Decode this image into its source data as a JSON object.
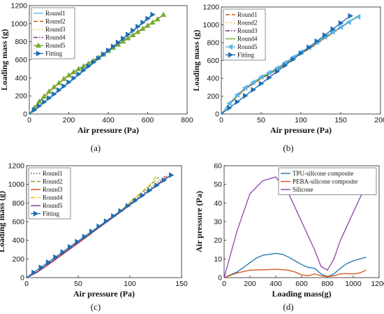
{
  "captions": [
    "(a)",
    "(b)",
    "(c)",
    "(d)"
  ],
  "colors": {
    "round1": "#5fb6e6",
    "round2": "#d95319",
    "round3": "#edb120",
    "round4": "#7e2f8e",
    "round5": "#77ac30",
    "fitting": "#1f6fb4",
    "tpu": "#1f77b4",
    "peba": "#d95319",
    "silicone": "#8e44ad"
  },
  "chart_data": [
    {
      "id": "a",
      "type": "line",
      "xlabel": "Air pressure (Pa)",
      "ylabel": "Loading mass (g)",
      "xlim": [
        0,
        800
      ],
      "ylim": [
        0,
        1200
      ],
      "xticks": [
        "0",
        "200",
        "400",
        "600",
        "800"
      ],
      "yticks": [
        "0",
        "200",
        "400",
        "600",
        "800",
        "1000",
        "1200"
      ],
      "legend_position": "top-left",
      "series": [
        {
          "name": "Round1",
          "color_key": "round1",
          "dash": "solid",
          "marker": "none",
          "x": [
            0,
            50,
            100,
            150,
            200,
            250,
            300,
            350,
            400,
            450,
            500,
            550,
            600,
            650,
            680
          ],
          "y": [
            0,
            130,
            250,
            340,
            430,
            500,
            560,
            625,
            700,
            770,
            840,
            910,
            980,
            1050,
            1100
          ]
        },
        {
          "name": "Round2",
          "color_key": "round2",
          "dash": "dash",
          "marker": "none",
          "x": [
            0,
            50,
            100,
            150,
            200,
            250,
            300,
            350,
            400,
            450,
            500,
            550,
            600,
            650,
            680
          ],
          "y": [
            0,
            125,
            245,
            340,
            425,
            495,
            555,
            620,
            695,
            765,
            835,
            905,
            975,
            1045,
            1100
          ]
        },
        {
          "name": "Round3",
          "color_key": "round3",
          "dash": "dot",
          "marker": "none",
          "x": [
            0,
            50,
            100,
            150,
            200,
            250,
            300,
            350,
            400,
            450,
            500,
            550,
            600,
            650,
            680
          ],
          "y": [
            0,
            128,
            248,
            342,
            428,
            498,
            558,
            622,
            698,
            768,
            838,
            908,
            978,
            1048,
            1100
          ]
        },
        {
          "name": "Round4",
          "color_key": "round4",
          "dash": "dashdot",
          "marker": "none",
          "x": [
            0,
            50,
            100,
            150,
            200,
            250,
            300,
            350,
            400,
            450,
            500,
            550,
            600,
            650,
            680
          ],
          "y": [
            0,
            132,
            252,
            345,
            432,
            502,
            562,
            628,
            702,
            772,
            842,
            912,
            982,
            1052,
            1100
          ]
        },
        {
          "name": "Round5",
          "color_key": "round5",
          "dash": "solid",
          "marker": "triangle-up",
          "x": [
            0,
            25,
            50,
            75,
            100,
            125,
            150,
            175,
            200,
            225,
            250,
            275,
            300,
            325,
            350,
            375,
            400,
            425,
            450,
            475,
            500,
            525,
            550,
            575,
            600,
            625,
            650,
            680
          ],
          "y": [
            0,
            70,
            140,
            195,
            250,
            300,
            345,
            390,
            430,
            465,
            500,
            530,
            560,
            590,
            625,
            660,
            700,
            735,
            770,
            805,
            840,
            875,
            910,
            945,
            980,
            1015,
            1050,
            1100
          ]
        },
        {
          "name": "Fitting",
          "color_key": "fitting",
          "dash": "solid",
          "marker": "triangle-right",
          "x": [
            0,
            25,
            50,
            75,
            100,
            125,
            150,
            175,
            200,
            225,
            250,
            275,
            300,
            325,
            350,
            375,
            400,
            425,
            450,
            475,
            500,
            525,
            550,
            575,
            600,
            625
          ],
          "y": [
            0,
            44,
            88,
            132,
            176,
            220,
            264,
            308,
            352,
            396,
            440,
            484,
            528,
            572,
            616,
            660,
            704,
            748,
            792,
            836,
            880,
            924,
            968,
            1012,
            1056,
            1100
          ]
        }
      ]
    },
    {
      "id": "b",
      "type": "line",
      "xlabel": "Air pressure (Pa)",
      "ylabel": "Loading mass (g)",
      "xlim": [
        0,
        200
      ],
      "ylim": [
        0,
        1200
      ],
      "xticks": [
        "0",
        "50",
        "100",
        "150",
        "200"
      ],
      "yticks": [
        "0",
        "200",
        "400",
        "600",
        "800",
        "1000",
        "1200"
      ],
      "legend_position": "top-left",
      "series": [
        {
          "name": "Round1",
          "color_key": "round2",
          "dash": "dash",
          "marker": "none",
          "x": [
            0,
            10,
            20,
            30,
            40,
            50,
            60,
            70,
            80,
            90,
            100,
            110,
            120,
            130,
            140,
            150,
            160,
            172
          ],
          "y": [
            0,
            110,
            200,
            280,
            340,
            400,
            450,
            500,
            560,
            620,
            680,
            730,
            790,
            850,
            910,
            970,
            1030,
            1100
          ]
        },
        {
          "name": "Round2",
          "color_key": "round3",
          "dash": "dot",
          "marker": "none",
          "x": [
            0,
            10,
            20,
            30,
            40,
            50,
            60,
            70,
            80,
            90,
            100,
            110,
            120,
            130,
            140,
            150,
            160,
            172
          ],
          "y": [
            0,
            105,
            195,
            275,
            335,
            395,
            445,
            495,
            555,
            615,
            675,
            725,
            785,
            845,
            905,
            965,
            1025,
            1100
          ]
        },
        {
          "name": "Round3",
          "color_key": "round4",
          "dash": "dashdot",
          "marker": "none",
          "x": [
            0,
            10,
            20,
            30,
            40,
            50,
            60,
            70,
            80,
            90,
            100,
            110,
            120,
            130,
            140,
            150,
            160,
            172
          ],
          "y": [
            0,
            108,
            198,
            278,
            338,
            398,
            448,
            498,
            558,
            618,
            678,
            728,
            788,
            848,
            908,
            968,
            1028,
            1100
          ]
        },
        {
          "name": "Round4",
          "color_key": "round5",
          "dash": "solid",
          "marker": "none",
          "x": [
            0,
            10,
            20,
            30,
            40,
            50,
            60,
            70,
            80,
            90,
            100,
            110,
            120,
            130,
            140,
            150,
            160,
            172
          ],
          "y": [
            0,
            112,
            205,
            285,
            345,
            405,
            455,
            505,
            565,
            625,
            685,
            735,
            795,
            855,
            915,
            975,
            1035,
            1100
          ]
        },
        {
          "name": "Round5",
          "color_key": "round1",
          "dash": "solid",
          "marker": "triangle-left",
          "x": [
            0,
            10,
            20,
            30,
            40,
            50,
            60,
            70,
            80,
            90,
            100,
            110,
            120,
            130,
            140,
            150,
            160,
            172
          ],
          "y": [
            0,
            120,
            215,
            295,
            355,
            415,
            465,
            515,
            575,
            635,
            695,
            745,
            805,
            865,
            920,
            975,
            1030,
            1090
          ]
        },
        {
          "name": "Fitting",
          "color_key": "fitting",
          "dash": "solid",
          "marker": "triangle-right",
          "x": [
            0,
            10,
            20,
            30,
            40,
            50,
            60,
            70,
            80,
            90,
            100,
            110,
            120,
            130,
            140,
            150,
            162
          ],
          "y": [
            0,
            68,
            136,
            204,
            272,
            340,
            408,
            476,
            544,
            612,
            680,
            748,
            816,
            884,
            952,
            1020,
            1100
          ]
        }
      ]
    },
    {
      "id": "c",
      "type": "line",
      "xlabel": "Air pressure (Pa)",
      "ylabel": "Loading mass (g)",
      "xlim": [
        0,
        150
      ],
      "ylim": [
        0,
        1200
      ],
      "xticks": [
        "0",
        "50",
        "100",
        "150"
      ],
      "yticks": [
        "0",
        "200",
        "400",
        "600",
        "800",
        "1000",
        "1200"
      ],
      "legend_position": "top-left",
      "series": [
        {
          "name": "Round1",
          "color_key": "round4",
          "dash": "dot",
          "marker": "none",
          "x": [
            0,
            10,
            20,
            30,
            40,
            50,
            60,
            70,
            80,
            90,
            100,
            110,
            120,
            130,
            135
          ],
          "y": [
            0,
            60,
            140,
            220,
            300,
            380,
            460,
            540,
            620,
            700,
            790,
            880,
            960,
            1050,
            1100
          ]
        },
        {
          "name": "Round2",
          "color_key": "round5",
          "dash": "dash",
          "marker": "none",
          "x": [
            0,
            10,
            20,
            30,
            40,
            50,
            60,
            70,
            80,
            90,
            100,
            110,
            120,
            128
          ],
          "y": [
            0,
            58,
            136,
            216,
            296,
            376,
            456,
            540,
            622,
            705,
            800,
            895,
            990,
            1080
          ]
        },
        {
          "name": "Round3",
          "color_key": "round2",
          "dash": "solid",
          "marker": "none",
          "x": [
            0,
            10,
            20,
            30,
            40,
            50,
            60,
            70,
            80,
            90,
            100,
            110,
            120,
            130,
            136
          ],
          "y": [
            0,
            55,
            130,
            210,
            290,
            370,
            450,
            535,
            615,
            695,
            780,
            865,
            945,
            1030,
            1090
          ]
        },
        {
          "name": "Round4",
          "color_key": "round3",
          "dash": "dashdot",
          "marker": "none",
          "x": [
            0,
            10,
            20,
            30,
            40,
            50,
            60,
            70,
            80,
            90,
            100,
            110,
            120,
            126
          ],
          "y": [
            0,
            62,
            142,
            224,
            304,
            384,
            466,
            548,
            632,
            715,
            810,
            905,
            1000,
            1100
          ]
        },
        {
          "name": "Round5",
          "color_key": "round4",
          "dash": "solid",
          "marker": "none",
          "x": [
            0,
            10,
            20,
            30,
            40,
            50,
            60,
            70,
            80,
            90,
            100,
            110,
            120,
            130,
            137
          ],
          "y": [
            0,
            57,
            135,
            214,
            294,
            374,
            454,
            536,
            616,
            696,
            778,
            860,
            940,
            1020,
            1080
          ]
        },
        {
          "name": "Fitting",
          "color_key": "fitting",
          "dash": "solid",
          "marker": "triangle-right",
          "x": [
            0,
            7,
            14,
            21,
            28,
            35,
            42,
            49,
            56,
            63,
            70,
            77,
            84,
            91,
            98,
            105,
            112,
            119,
            126,
            133,
            140
          ],
          "y": [
            0,
            55,
            110,
            165,
            220,
            275,
            330,
            385,
            440,
            495,
            550,
            605,
            660,
            715,
            770,
            825,
            880,
            935,
            990,
            1045,
            1100
          ]
        }
      ]
    },
    {
      "id": "d",
      "type": "line",
      "xlabel": "Loading mass(g)",
      "ylabel": "Air pressure (Pa)",
      "xlim": [
        0,
        1200
      ],
      "ylim": [
        0,
        60
      ],
      "xticks": [
        "0",
        "200",
        "400",
        "600",
        "800",
        "1000",
        "1200"
      ],
      "yticks": [
        "0",
        "10",
        "20",
        "30",
        "40",
        "50",
        "60"
      ],
      "legend_position": "top-right",
      "series": [
        {
          "name": "TPU-silicone composite",
          "color_key": "tpu",
          "dash": "solid",
          "marker": "none",
          "x": [
            0,
            100,
            200,
            250,
            300,
            350,
            400,
            450,
            500,
            550,
            600,
            650,
            700,
            750,
            800,
            850,
            900,
            950,
            1000,
            1050,
            1100
          ],
          "y": [
            0,
            3,
            8,
            10.5,
            12,
            12.5,
            13,
            12.5,
            11,
            9,
            7,
            5.5,
            5,
            2,
            0.5,
            2,
            5,
            7.5,
            9,
            10,
            11
          ]
        },
        {
          "name": "PEBA-silicone composite",
          "color_key": "peba",
          "dash": "solid",
          "marker": "none",
          "x": [
            0,
            100,
            200,
            300,
            400,
            500,
            550,
            600,
            650,
            700,
            750,
            800,
            850,
            900,
            950,
            1000,
            1050,
            1100
          ],
          "y": [
            0,
            2.5,
            4,
            4.2,
            4.5,
            4,
            3,
            1.5,
            1,
            2,
            1,
            0.5,
            1,
            2,
            2.2,
            2,
            2.5,
            4
          ]
        },
        {
          "name": "Silicone",
          "color_key": "silicone",
          "dash": "solid",
          "marker": "none",
          "x": [
            0,
            100,
            200,
            300,
            400,
            500,
            600,
            700,
            750,
            800,
            850,
            900,
            1000,
            1100
          ],
          "y": [
            0,
            25,
            45,
            52,
            54,
            45,
            30,
            15,
            6,
            4,
            10,
            20,
            35,
            50
          ]
        }
      ]
    }
  ]
}
